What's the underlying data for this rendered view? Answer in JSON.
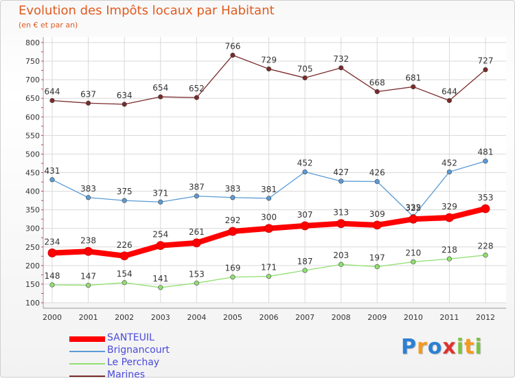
{
  "title": "Evolution des Impôts locaux par Habitant",
  "subtitle": "(en € et par an)",
  "logo": {
    "letters": [
      "P",
      "r",
      "o",
      "x",
      "i",
      "t",
      "i"
    ],
    "colors": [
      "#2b7fd4",
      "#f39a1e",
      "#2b7fd4",
      "#e03030",
      "#7cc242",
      "#f39a1e",
      "#7cc242"
    ]
  },
  "chart_data": {
    "type": "line",
    "x": [
      "2000",
      "2001",
      "2002",
      "2003",
      "2004",
      "2005",
      "2006",
      "2007",
      "2008",
      "2009",
      "2010",
      "2011",
      "2012"
    ],
    "ylim": [
      100,
      800
    ],
    "yticks": [
      100,
      150,
      200,
      250,
      300,
      350,
      400,
      450,
      500,
      550,
      600,
      650,
      700,
      750,
      800
    ],
    "grid": true,
    "legend_position": "bottom-left",
    "series": [
      {
        "name": "SANTEUIL",
        "color": "#ff0000",
        "values": [
          234,
          238,
          226,
          254,
          261,
          292,
          300,
          307,
          313,
          309,
          325,
          329,
          353
        ]
      },
      {
        "name": "Brignancourt",
        "color": "#5b9bd5",
        "values": [
          431,
          383,
          375,
          371,
          387,
          383,
          381,
          452,
          427,
          426,
          332,
          452,
          481
        ]
      },
      {
        "name": "Le Perchay",
        "color": "#90e070",
        "values": [
          148,
          147,
          154,
          141,
          153,
          169,
          171,
          187,
          203,
          197,
          210,
          218,
          228
        ]
      },
      {
        "name": "Marines",
        "color": "#7a2a2a",
        "values": [
          644,
          637,
          634,
          654,
          652,
          766,
          729,
          705,
          732,
          668,
          681,
          644,
          727
        ]
      }
    ]
  }
}
